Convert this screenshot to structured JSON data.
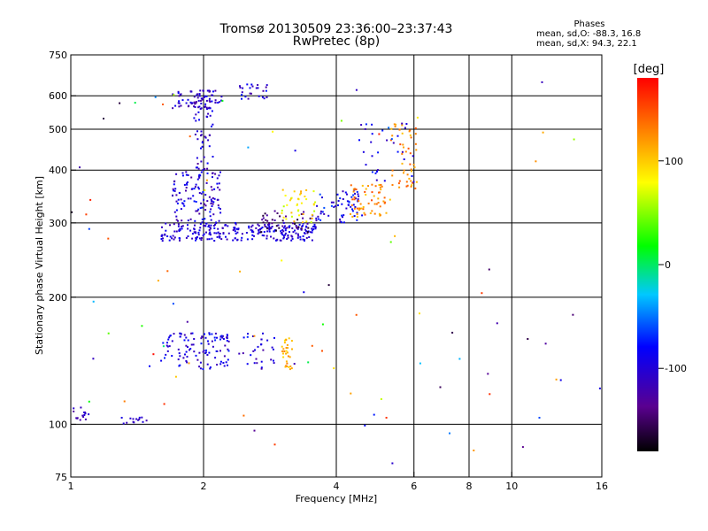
{
  "header": {
    "title": "Tromsø 20130509 23:36:00–23:37:43",
    "subtitle": "RwPretec (8p)"
  },
  "phases": {
    "title": "Phases",
    "line_o": "mean, sd,O: -88.3, 16.8",
    "line_x": "mean, sd,X:  94.3, 22.1"
  },
  "colorbar": {
    "unit": "[deg]",
    "ticks": [
      "100",
      "0",
      "-100"
    ],
    "tick_values": [
      100,
      0,
      -100
    ],
    "range": [
      -180,
      180
    ]
  },
  "chart_data": {
    "type": "scatter",
    "xlabel": "Frequency [MHz]",
    "ylabel": "Stationary phase Virtual Height [km]",
    "xscale": "log",
    "yscale": "log",
    "xlim": [
      1,
      16
    ],
    "ylim": [
      75,
      750
    ],
    "xticks": [
      1,
      2,
      4,
      6,
      8,
      10,
      16
    ],
    "xtick_labels": [
      "1",
      "2",
      "4",
      "6",
      "8",
      "10",
      "16"
    ],
    "xgrid": [
      2,
      4,
      6,
      8,
      10
    ],
    "yticks": [
      75,
      100,
      200,
      300,
      400,
      500,
      600,
      750
    ],
    "ytick_labels": [
      "75",
      "100",
      "200",
      "300",
      "400",
      "500",
      "600",
      "750"
    ],
    "ygrid": [
      100,
      200,
      300,
      400,
      500,
      600
    ],
    "clusters": [
      {
        "x": [
          1.6,
          3.6
        ],
        "y": [
          272,
          300
        ],
        "phase": [
          -120,
          -80
        ],
        "n": 260
      },
      {
        "x": [
          2.7,
          3.6
        ],
        "y": [
          285,
          320
        ],
        "phase": [
          -170,
          -120
        ],
        "n": 40
      },
      {
        "x": [
          1.7,
          2.2
        ],
        "y": [
          300,
          400
        ],
        "phase": [
          -130,
          -70
        ],
        "n": 120
      },
      {
        "x": [
          1.9,
          2.1
        ],
        "y": [
          400,
          620
        ],
        "phase": [
          -130,
          -80
        ],
        "n": 60
      },
      {
        "x": [
          1.7,
          2.2
        ],
        "y": [
          560,
          620
        ],
        "phase": [
          -130,
          -80
        ],
        "n": 60
      },
      {
        "x": [
          2.4,
          2.8
        ],
        "y": [
          590,
          640
        ],
        "phase": [
          -130,
          -70
        ],
        "n": 25
      },
      {
        "x": [
          3.0,
          3.6
        ],
        "y": [
          300,
          360
        ],
        "phase": [
          60,
          120
        ],
        "n": 40
      },
      {
        "x": [
          3.6,
          4.6
        ],
        "y": [
          300,
          360
        ],
        "phase": [
          -120,
          -60
        ],
        "n": 60
      },
      {
        "x": [
          4.3,
          5.3
        ],
        "y": [
          310,
          370
        ],
        "phase": [
          100,
          150
        ],
        "n": 60
      },
      {
        "x": [
          5.3,
          6.1
        ],
        "y": [
          360,
          520
        ],
        "phase": [
          100,
          150
        ],
        "n": 50
      },
      {
        "x": [
          4.5,
          6.0
        ],
        "y": [
          360,
          520
        ],
        "phase": [
          -120,
          -70
        ],
        "n": 30
      },
      {
        "x": [
          1.6,
          2.3
        ],
        "y": [
          135,
          165
        ],
        "phase": [
          -120,
          -70
        ],
        "n": 110
      },
      {
        "x": [
          2.4,
          2.9
        ],
        "y": [
          135,
          165
        ],
        "phase": [
          -130,
          -70
        ],
        "n": 30
      },
      {
        "x": [
          3.0,
          3.2
        ],
        "y": [
          135,
          160
        ],
        "phase": [
          90,
          130
        ],
        "n": 30
      },
      {
        "x": [
          1.0,
          1.1
        ],
        "y": [
          102,
          110
        ],
        "phase": [
          -130,
          -100
        ],
        "n": 18
      },
      {
        "x": [
          1.3,
          1.5
        ],
        "y": [
          100,
          104
        ],
        "phase": [
          -120,
          -90
        ],
        "n": 14
      },
      {
        "x": [
          1.0,
          16.0
        ],
        "y": [
          80,
          650
        ],
        "phase": [
          -180,
          180
        ],
        "n": 90
      }
    ]
  }
}
